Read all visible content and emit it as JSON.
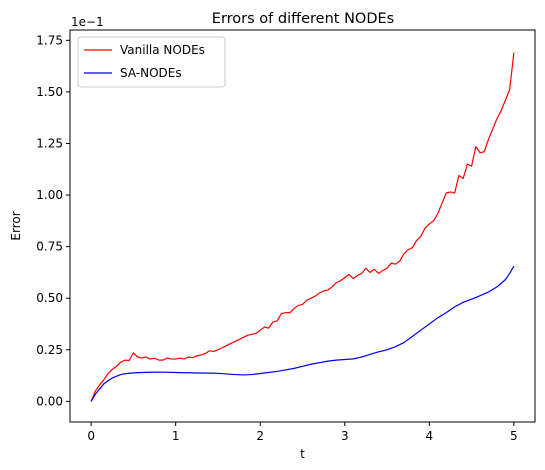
{
  "chart_data": {
    "type": "line",
    "title": "Errors of different NODEs",
    "xlabel": "t",
    "ylabel": "Error",
    "y_scale_label": "1e−1",
    "xlim": [
      -0.25,
      5.25
    ],
    "ylim": [
      -0.1,
      1.8
    ],
    "x_ticks": [
      0,
      1,
      2,
      3,
      4,
      5
    ],
    "x_tick_labels": [
      "0",
      "1",
      "2",
      "3",
      "4",
      "5"
    ],
    "y_ticks": [
      0,
      0.25,
      0.5,
      0.75,
      1.0,
      1.25,
      1.5,
      1.75
    ],
    "y_tick_labels": [
      "0.00",
      "0.25",
      "0.50",
      "0.75",
      "1.00",
      "1.25",
      "1.50",
      "1.75"
    ],
    "grid": false,
    "legend_position": "top-left",
    "series": [
      {
        "name": "Vanilla NODEs",
        "color": "#ff0000",
        "points": [
          [
            0.0,
            0.0
          ],
          [
            0.05,
            0.05
          ],
          [
            0.1,
            0.08
          ],
          [
            0.15,
            0.105
          ],
          [
            0.2,
            0.135
          ],
          [
            0.25,
            0.155
          ],
          [
            0.3,
            0.17
          ],
          [
            0.35,
            0.19
          ],
          [
            0.4,
            0.2
          ],
          [
            0.45,
            0.198
          ],
          [
            0.5,
            0.235
          ],
          [
            0.55,
            0.215
          ],
          [
            0.6,
            0.21
          ],
          [
            0.65,
            0.215
          ],
          [
            0.7,
            0.205
          ],
          [
            0.75,
            0.21
          ],
          [
            0.8,
            0.2
          ],
          [
            0.85,
            0.2
          ],
          [
            0.9,
            0.21
          ],
          [
            0.95,
            0.205
          ],
          [
            1.0,
            0.205
          ],
          [
            1.05,
            0.21
          ],
          [
            1.1,
            0.205
          ],
          [
            1.15,
            0.215
          ],
          [
            1.2,
            0.212
          ],
          [
            1.25,
            0.22
          ],
          [
            1.3,
            0.225
          ],
          [
            1.35,
            0.232
          ],
          [
            1.4,
            0.245
          ],
          [
            1.45,
            0.242
          ],
          [
            1.5,
            0.25
          ],
          [
            1.55,
            0.26
          ],
          [
            1.6,
            0.27
          ],
          [
            1.65,
            0.28
          ],
          [
            1.7,
            0.29
          ],
          [
            1.75,
            0.3
          ],
          [
            1.8,
            0.31
          ],
          [
            1.85,
            0.32
          ],
          [
            1.9,
            0.325
          ],
          [
            1.95,
            0.33
          ],
          [
            2.0,
            0.345
          ],
          [
            2.05,
            0.36
          ],
          [
            2.1,
            0.355
          ],
          [
            2.15,
            0.385
          ],
          [
            2.2,
            0.39
          ],
          [
            2.25,
            0.425
          ],
          [
            2.3,
            0.43
          ],
          [
            2.35,
            0.43
          ],
          [
            2.4,
            0.45
          ],
          [
            2.45,
            0.465
          ],
          [
            2.5,
            0.47
          ],
          [
            2.55,
            0.49
          ],
          [
            2.6,
            0.5
          ],
          [
            2.65,
            0.51
          ],
          [
            2.7,
            0.525
          ],
          [
            2.75,
            0.535
          ],
          [
            2.8,
            0.54
          ],
          [
            2.85,
            0.555
          ],
          [
            2.9,
            0.575
          ],
          [
            2.95,
            0.585
          ],
          [
            3.0,
            0.6
          ],
          [
            3.05,
            0.615
          ],
          [
            3.1,
            0.595
          ],
          [
            3.15,
            0.61
          ],
          [
            3.2,
            0.62
          ],
          [
            3.25,
            0.645
          ],
          [
            3.3,
            0.625
          ],
          [
            3.35,
            0.64
          ],
          [
            3.4,
            0.62
          ],
          [
            3.45,
            0.635
          ],
          [
            3.5,
            0.645
          ],
          [
            3.55,
            0.67
          ],
          [
            3.6,
            0.665
          ],
          [
            3.65,
            0.68
          ],
          [
            3.7,
            0.715
          ],
          [
            3.75,
            0.735
          ],
          [
            3.8,
            0.745
          ],
          [
            3.85,
            0.78
          ],
          [
            3.9,
            0.8
          ],
          [
            3.95,
            0.84
          ],
          [
            4.0,
            0.86
          ],
          [
            4.05,
            0.875
          ],
          [
            4.1,
            0.91
          ],
          [
            4.15,
            0.96
          ],
          [
            4.2,
            1.01
          ],
          [
            4.25,
            1.015
          ],
          [
            4.3,
            1.01
          ],
          [
            4.35,
            1.095
          ],
          [
            4.4,
            1.08
          ],
          [
            4.45,
            1.15
          ],
          [
            4.5,
            1.14
          ],
          [
            4.55,
            1.235
          ],
          [
            4.6,
            1.205
          ],
          [
            4.65,
            1.21
          ],
          [
            4.7,
            1.27
          ],
          [
            4.75,
            1.32
          ],
          [
            4.8,
            1.37
          ],
          [
            4.85,
            1.41
          ],
          [
            4.9,
            1.46
          ],
          [
            4.95,
            1.51
          ],
          [
            5.0,
            1.69
          ]
        ]
      },
      {
        "name": "SA-NODEs",
        "color": "#0000ff",
        "points": [
          [
            0.0,
            0.0
          ],
          [
            0.05,
            0.035
          ],
          [
            0.1,
            0.06
          ],
          [
            0.15,
            0.085
          ],
          [
            0.2,
            0.1
          ],
          [
            0.25,
            0.113
          ],
          [
            0.3,
            0.122
          ],
          [
            0.35,
            0.13
          ],
          [
            0.4,
            0.134
          ],
          [
            0.5,
            0.138
          ],
          [
            0.6,
            0.14
          ],
          [
            0.7,
            0.141
          ],
          [
            0.8,
            0.142
          ],
          [
            1.0,
            0.14
          ],
          [
            1.2,
            0.138
          ],
          [
            1.4,
            0.137
          ],
          [
            1.5,
            0.136
          ],
          [
            1.6,
            0.133
          ],
          [
            1.7,
            0.13
          ],
          [
            1.8,
            0.128
          ],
          [
            1.9,
            0.13
          ],
          [
            2.0,
            0.135
          ],
          [
            2.2,
            0.145
          ],
          [
            2.4,
            0.16
          ],
          [
            2.5,
            0.17
          ],
          [
            2.6,
            0.18
          ],
          [
            2.8,
            0.195
          ],
          [
            2.9,
            0.2
          ],
          [
            3.0,
            0.203
          ],
          [
            3.1,
            0.206
          ],
          [
            3.2,
            0.215
          ],
          [
            3.3,
            0.228
          ],
          [
            3.4,
            0.24
          ],
          [
            3.5,
            0.25
          ],
          [
            3.6,
            0.265
          ],
          [
            3.7,
            0.285
          ],
          [
            3.8,
            0.315
          ],
          [
            3.9,
            0.345
          ],
          [
            4.0,
            0.375
          ],
          [
            4.1,
            0.405
          ],
          [
            4.2,
            0.43
          ],
          [
            4.3,
            0.458
          ],
          [
            4.4,
            0.48
          ],
          [
            4.5,
            0.495
          ],
          [
            4.6,
            0.512
          ],
          [
            4.7,
            0.53
          ],
          [
            4.8,
            0.555
          ],
          [
            4.9,
            0.59
          ],
          [
            4.95,
            0.62
          ],
          [
            5.0,
            0.655
          ]
        ]
      }
    ]
  }
}
